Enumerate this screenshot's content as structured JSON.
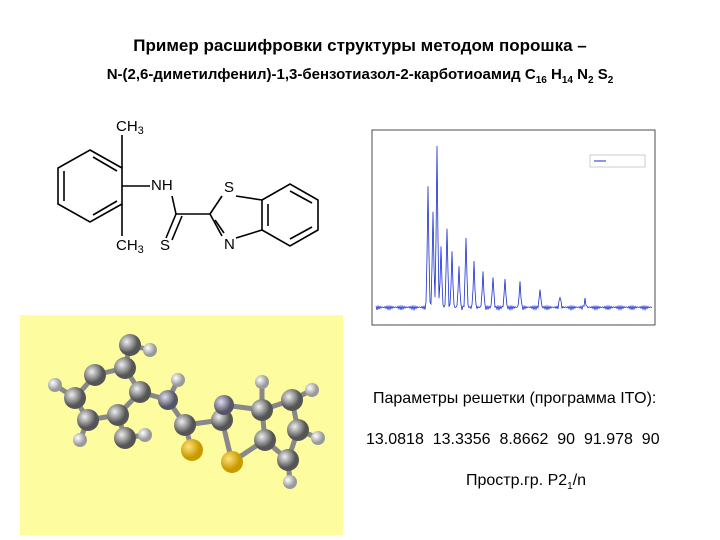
{
  "title": "Пример расшифровки структуры методом порошка –",
  "subtitle": {
    "name": "N-(2,6-диметилфенил)-1,3-бензотиазол-2-карботиоамид",
    "formula": [
      {
        "el": "C",
        "n": "16"
      },
      {
        "el": "H",
        "n": "14"
      },
      {
        "el": "N",
        "n": "2"
      },
      {
        "el": "S",
        "n": "2"
      }
    ]
  },
  "structure": {
    "ch3_top": {
      "main": "CH",
      "sub": "3"
    },
    "nh": "NH",
    "s_ring": "S",
    "s_thio": "S",
    "n_ring": "N",
    "ch3_bottom": {
      "main": "CH",
      "sub": "3"
    }
  },
  "params": {
    "label": "Параметры решетки (программа ITO):",
    "values": "13.0818  13.3356  8.8662  90  91.978  90",
    "space_group": {
      "main": "Простр.гр. P2",
      "sub": "1",
      "rest": "/n"
    }
  }
}
